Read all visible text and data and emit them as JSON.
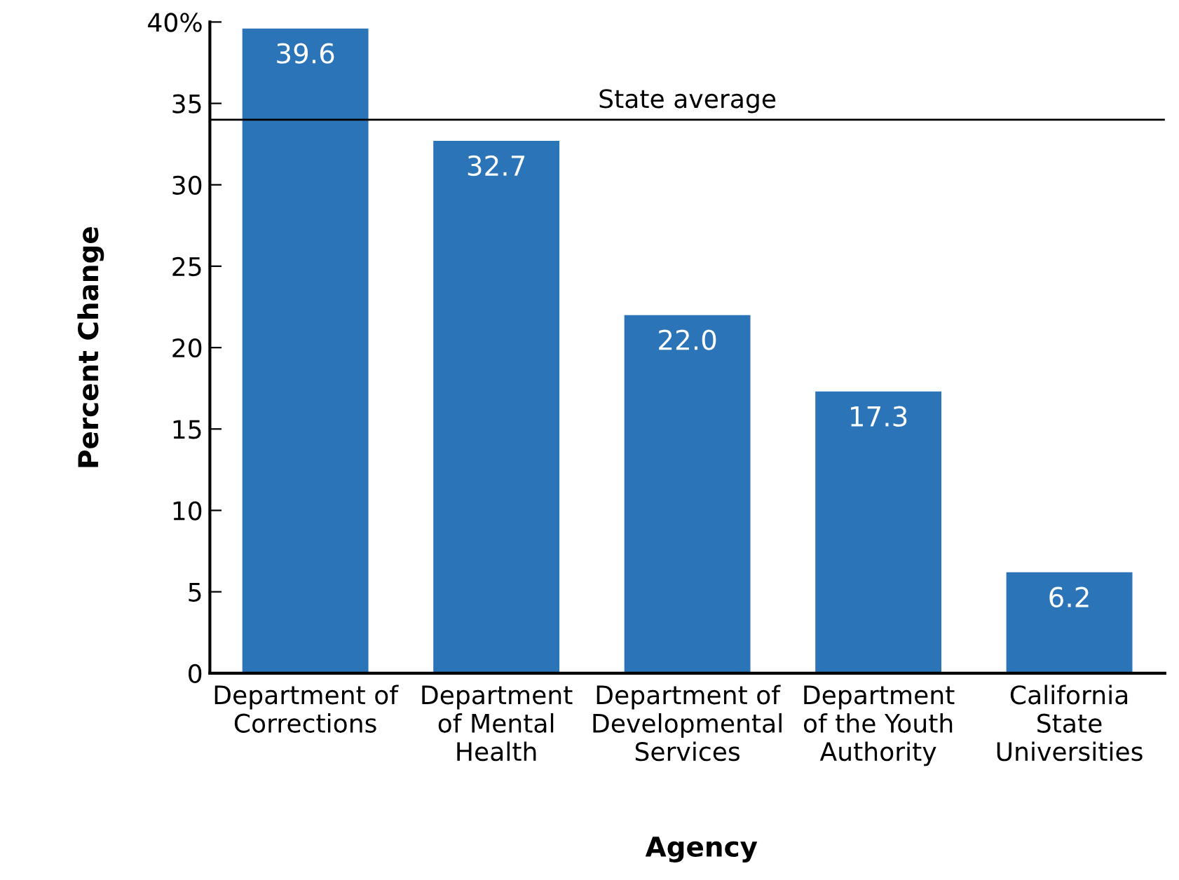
{
  "chart_data": {
    "type": "bar",
    "xlabel": "Agency",
    "ylabel": "Percent Change",
    "categories": [
      "Department of\nCorrections",
      "Department\nof Mental\nHealth",
      "Department of\nDevelopmental\nServices",
      "Department\nof the Youth\nAuthority",
      "California\nState\nUniversities"
    ],
    "values": [
      39.6,
      32.7,
      22.0,
      17.3,
      6.2
    ],
    "color": "#2b74b8",
    "value_labels": [
      "39.6",
      "32.7",
      "22.0",
      "17.3",
      "6.2"
    ],
    "ylim": [
      0,
      40
    ],
    "yticks": [
      0,
      5,
      10,
      15,
      20,
      25,
      30,
      35,
      {
        "value": 40,
        "label": "40%"
      }
    ],
    "ref_lines": [
      {
        "axis": "y",
        "value": 34.0,
        "label": "State average",
        "color": "#000000"
      }
    ],
    "grid": false
  }
}
